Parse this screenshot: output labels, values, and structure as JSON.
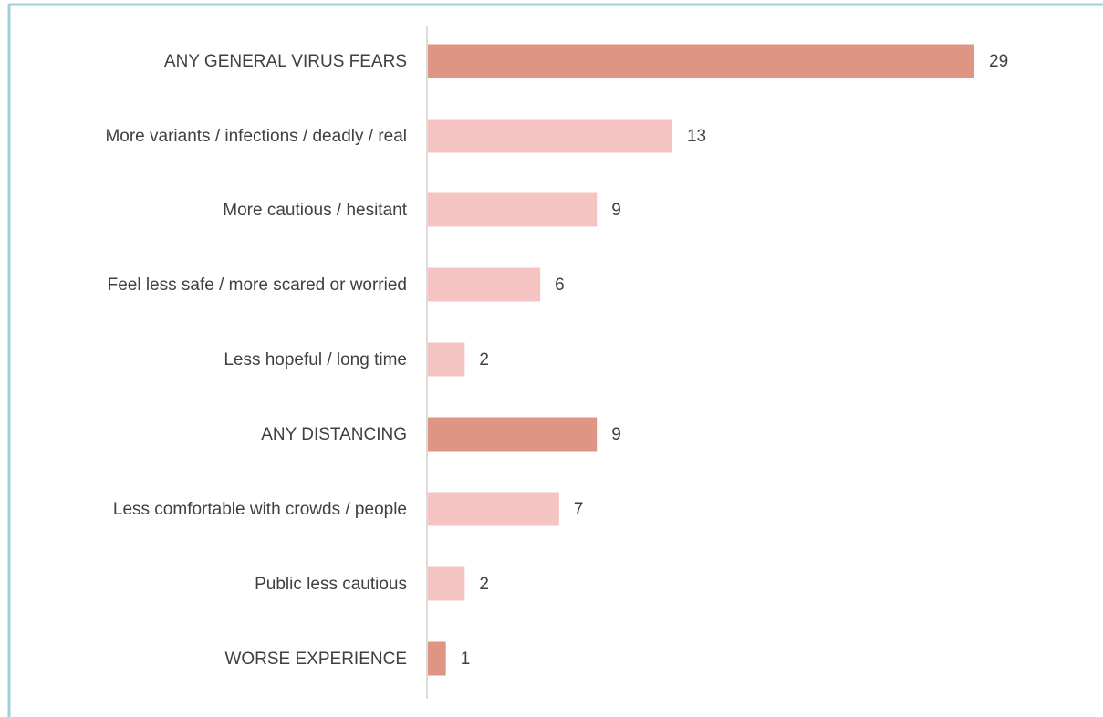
{
  "chart_data": {
    "type": "barh",
    "categories": [
      "ANY GENERAL VIRUS FEARS",
      "More variants / infections / deadly / real",
      "More cautious / hesitant",
      "Feel less safe / more scared or worried",
      "Less hopeful / long time",
      "ANY DISTANCING",
      "Less comfortable with crowds / people",
      "Public less cautious",
      "WORSE EXPERIENCE"
    ],
    "values": [
      29,
      13,
      9,
      6,
      2,
      9,
      7,
      2,
      1
    ],
    "colors": [
      "#de9583",
      "#f5c4c2",
      "#f5c4c2",
      "#f5c4c2",
      "#f5c4c2",
      "#de9583",
      "#f5c4c2",
      "#f5c4c2",
      "#de9583"
    ]
  }
}
